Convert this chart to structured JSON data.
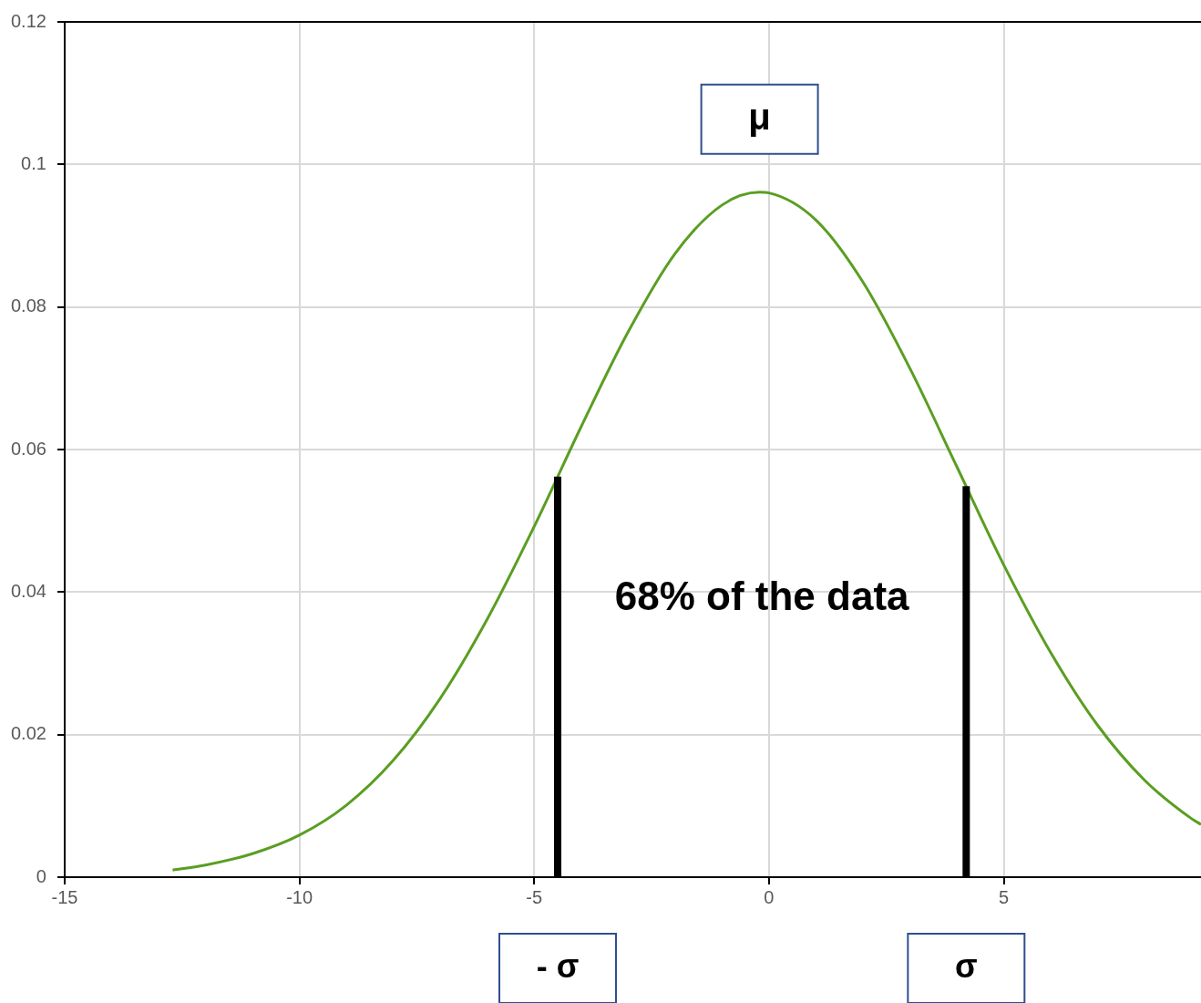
{
  "chart_data": {
    "type": "line",
    "x": [
      -12.7,
      -12,
      -11,
      -10,
      -9,
      -8,
      -7,
      -6,
      -5,
      -4,
      -3,
      -2,
      -1,
      -0.2,
      0,
      1,
      2,
      3,
      4,
      5,
      6,
      7,
      8,
      9,
      9.2
    ],
    "series": [
      {
        "color": "#5a9e22",
        "values": [
          0.001,
          0.0017,
          0.0033,
          0.0059,
          0.0101,
          0.0164,
          0.0251,
          0.0362,
          0.0492,
          0.0632,
          0.0765,
          0.0875,
          0.0943,
          0.0961,
          0.096,
          0.0922,
          0.0835,
          0.0714,
          0.0576,
          0.0438,
          0.0315,
          0.0213,
          0.0136,
          0.0082,
          0.0074
        ]
      }
    ],
    "xlim": [
      -15,
      9.2
    ],
    "xticks": [
      -15,
      -10,
      -5,
      0,
      5
    ],
    "ylim": [
      0,
      0.12
    ],
    "yticks": [
      0,
      0.02,
      0.04,
      0.06,
      0.08,
      0.1,
      0.12
    ],
    "grid": true,
    "marker": "none",
    "line_style": "solid",
    "ref_lines": [
      {
        "axis": "x",
        "value": -4.5,
        "label": "- σ",
        "color": "#000000"
      },
      {
        "axis": "x",
        "value": 4.2,
        "label": "σ",
        "color": "#000000"
      }
    ],
    "annotations": [
      "μ",
      "68% of the data"
    ]
  }
}
